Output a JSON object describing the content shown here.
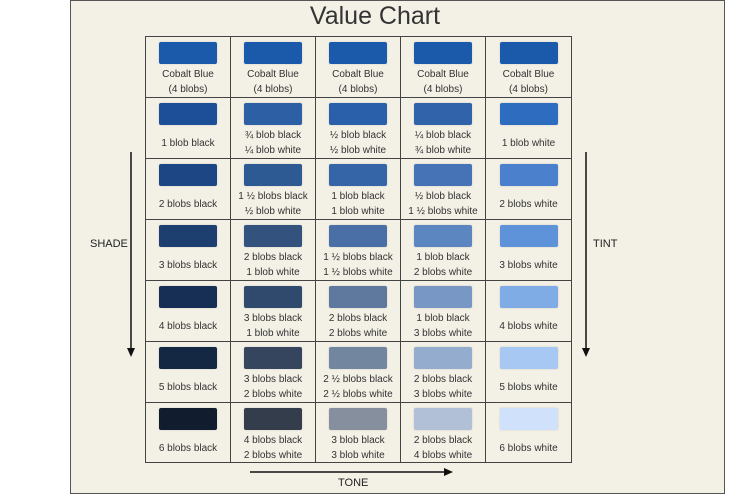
{
  "title": "Value Chart",
  "labels": {
    "shade": "SHADE",
    "tint": "TINT",
    "tone": "TONE"
  },
  "rows": [
    [
      {
        "lines": [
          "Cobalt Blue",
          "(4 blobs)"
        ],
        "color": "#1b5aab"
      },
      {
        "lines": [
          "Cobalt Blue",
          "(4 blobs)"
        ],
        "color": "#1b5aab"
      },
      {
        "lines": [
          "Cobalt Blue",
          "(4 blobs)"
        ],
        "color": "#1b5aab"
      },
      {
        "lines": [
          "Cobalt Blue",
          "(4 blobs)"
        ],
        "color": "#1b5aab"
      },
      {
        "lines": [
          "Cobalt Blue",
          "(4 blobs)"
        ],
        "color": "#1b5aab"
      }
    ],
    [
      {
        "lines": [
          "1 blob black"
        ],
        "color": "#1c4f98"
      },
      {
        "lines": [
          "¾ blob black",
          "¼ blob white"
        ],
        "color": "#2c5fa3"
      },
      {
        "lines": [
          "½ blob black",
          "½ blob white"
        ],
        "color": "#2a60aa"
      },
      {
        "lines": [
          "¼ blob black",
          "¾ blob white"
        ],
        "color": "#3163ab"
      },
      {
        "lines": [
          "1 blob white"
        ],
        "color": "#2e6cc0"
      }
    ],
    [
      {
        "lines": [
          "2 blobs black"
        ],
        "color": "#1d4784"
      },
      {
        "lines": [
          "1 ½ blobs black",
          "½ blob white"
        ],
        "color": "#2e5a93"
      },
      {
        "lines": [
          "1 blob black",
          "1 blob white"
        ],
        "color": "#3565a6"
      },
      {
        "lines": [
          "½ blob black",
          "1 ½ blobs white"
        ],
        "color": "#4573b5"
      },
      {
        "lines": [
          "2 blobs white"
        ],
        "color": "#4a80cc"
      }
    ],
    [
      {
        "lines": [
          "3 blobs black"
        ],
        "color": "#1c3f70"
      },
      {
        "lines": [
          "2 blobs black",
          "1 blob white"
        ],
        "color": "#34527e"
      },
      {
        "lines": [
          "1 ½ blobs black",
          "1 ½ blobs white"
        ],
        "color": "#4a6fa6"
      },
      {
        "lines": [
          "1 blob black",
          "2 blobs white"
        ],
        "color": "#5b86c0"
      },
      {
        "lines": [
          "3 blobs white"
        ],
        "color": "#5f93d9"
      }
    ],
    [
      {
        "lines": [
          "4 blobs black"
        ],
        "color": "#172f55"
      },
      {
        "lines": [
          "3 blobs black",
          "1 blob white"
        ],
        "color": "#2f4a6d"
      },
      {
        "lines": [
          "2 blobs black",
          "2 blobs white"
        ],
        "color": "#5f789d"
      },
      {
        "lines": [
          "1  blob black",
          "3 blobs white"
        ],
        "color": "#7897c4"
      },
      {
        "lines": [
          "4 blobs white"
        ],
        "color": "#80ace6"
      }
    ],
    [
      {
        "lines": [
          "5 blobs black"
        ],
        "color": "#142743"
      },
      {
        "lines": [
          "3 blobs black",
          "2 blobs white"
        ],
        "color": "#36455e"
      },
      {
        "lines": [
          "2 ½ blobs black",
          "2 ½ blobs white"
        ],
        "color": "#7386a0"
      },
      {
        "lines": [
          "2 blobs black",
          "3 blobs white"
        ],
        "color": "#94acce"
      },
      {
        "lines": [
          "5 blobs white"
        ],
        "color": "#a7c8f2"
      }
    ],
    [
      {
        "lines": [
          "6 blobs black"
        ],
        "color": "#111d2e"
      },
      {
        "lines": [
          "4 blobs black",
          "2 blobs white"
        ],
        "color": "#333d4b"
      },
      {
        "lines": [
          "3 blob black",
          "3 blob white"
        ],
        "color": "#858f9d"
      },
      {
        "lines": [
          "2 blobs black",
          "4 blobs white"
        ],
        "color": "#b1c0d6"
      },
      {
        "lines": [
          "6 blobs white"
        ],
        "color": "#cfe1fb"
      }
    ]
  ]
}
